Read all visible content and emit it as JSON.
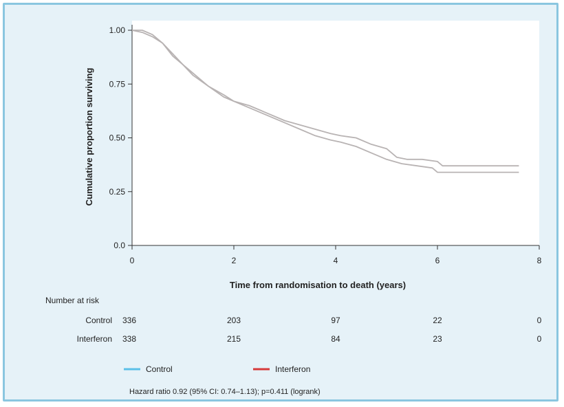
{
  "colors": {
    "frame_bg": "#e6f2f8",
    "frame_border": "#8ac6e0",
    "plot_bg": "#ffffff",
    "control": "#5bc0e8",
    "interferon": "#d63a3a",
    "curve_drawn": "#b8b3b3"
  },
  "chart_data": {
    "type": "line",
    "xlabel": "Time from randomisation to death (years)",
    "ylabel": "Cumulative proportion surviving",
    "xlim": [
      0,
      8
    ],
    "ylim": [
      0,
      1
    ],
    "x_ticks": [
      0,
      2,
      4,
      6,
      8
    ],
    "x_tick_labels": [
      "0",
      "2",
      "4",
      "6",
      "8"
    ],
    "y_ticks": [
      0,
      0.25,
      0.5,
      0.75,
      1.0
    ],
    "y_tick_labels": [
      "0.0",
      "0.25",
      "0.50",
      "0.75",
      "1.00"
    ],
    "grid": false,
    "legend_position": "bottom",
    "series": [
      {
        "name": "Control",
        "x": [
          0,
          0.2,
          0.4,
          0.6,
          0.8,
          1.0,
          1.2,
          1.5,
          1.8,
          2.0,
          2.3,
          2.6,
          3.0,
          3.3,
          3.6,
          3.9,
          4.1,
          4.4,
          4.7,
          5.0,
          5.3,
          5.6,
          5.9,
          6.0,
          6.5,
          7.0,
          7.6
        ],
        "y": [
          1.0,
          1.0,
          0.98,
          0.94,
          0.89,
          0.84,
          0.8,
          0.74,
          0.69,
          0.67,
          0.64,
          0.61,
          0.57,
          0.54,
          0.51,
          0.49,
          0.48,
          0.46,
          0.43,
          0.4,
          0.38,
          0.37,
          0.36,
          0.34,
          0.34,
          0.34,
          0.34
        ]
      },
      {
        "name": "Interferon",
        "x": [
          0,
          0.2,
          0.4,
          0.6,
          0.8,
          1.0,
          1.2,
          1.5,
          1.8,
          2.0,
          2.3,
          2.6,
          3.0,
          3.3,
          3.6,
          3.9,
          4.1,
          4.4,
          4.7,
          5.0,
          5.2,
          5.4,
          5.7,
          6.0,
          6.1,
          6.5,
          7.0,
          7.6
        ],
        "y": [
          1.0,
          0.99,
          0.97,
          0.94,
          0.88,
          0.84,
          0.79,
          0.74,
          0.7,
          0.67,
          0.65,
          0.62,
          0.58,
          0.56,
          0.54,
          0.52,
          0.51,
          0.5,
          0.47,
          0.45,
          0.41,
          0.4,
          0.4,
          0.39,
          0.37,
          0.37,
          0.37,
          0.37
        ]
      }
    ]
  },
  "risk_table": {
    "title": "Number at risk",
    "times": [
      0,
      2,
      4,
      6,
      8
    ],
    "rows": [
      {
        "label": "Control",
        "values": [
          "336",
          "203",
          "97",
          "22",
          "0"
        ]
      },
      {
        "label": "Interferon",
        "values": [
          "338",
          "215",
          "84",
          "23",
          "0"
        ]
      }
    ]
  },
  "legend": {
    "items": [
      {
        "label": "Control",
        "color": "#5bc0e8"
      },
      {
        "label": "Interferon",
        "color": "#d63a3a"
      }
    ]
  },
  "footnote": "Hazard ratio 0.92 (95% CI: 0.74–1.13); p=0.411 (logrank)"
}
